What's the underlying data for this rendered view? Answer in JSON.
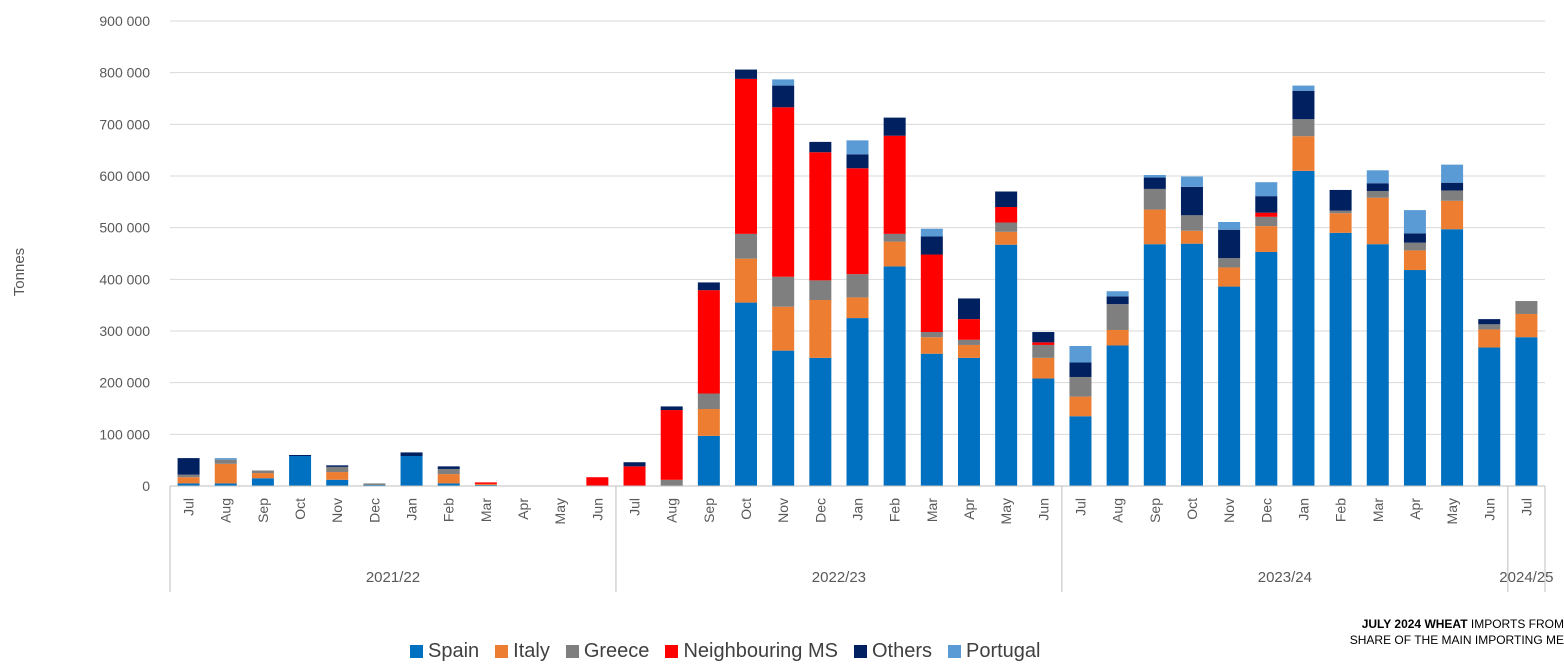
{
  "chart_data": {
    "type": "bar",
    "stacked": true,
    "ylabel": "Tonnes",
    "ylim": [
      0,
      900000
    ],
    "yticks": [
      0,
      100000,
      200000,
      300000,
      400000,
      500000,
      600000,
      700000,
      800000,
      900000
    ],
    "ytick_labels": [
      "0",
      "100 000",
      "200 000",
      "300 000",
      "400 000",
      "500 000",
      "600 000",
      "700 000",
      "800 000",
      "900 000"
    ],
    "grid": true,
    "legend_position": "bottom",
    "categories": [
      "Jul",
      "Aug",
      "Sep",
      "Oct",
      "Nov",
      "Dec",
      "Jan",
      "Feb",
      "Mar",
      "Apr",
      "May",
      "Jun",
      "Jul",
      "Aug",
      "Sep",
      "Oct",
      "Nov",
      "Dec",
      "Jan",
      "Feb",
      "Mar",
      "Apr",
      "May",
      "Jun",
      "Jul",
      "Aug",
      "Sep",
      "Oct",
      "Nov",
      "Dec",
      "Jan",
      "Feb",
      "Mar",
      "Apr",
      "May",
      "Jun",
      "Jul"
    ],
    "groups": [
      {
        "label": "2021/22",
        "count": 12
      },
      {
        "label": "2022/23",
        "count": 12
      },
      {
        "label": "2023/24",
        "count": 12
      },
      {
        "label": "2024/25",
        "count": 1
      }
    ],
    "series": [
      {
        "name": "Spain",
        "color": "#0070C0",
        "values": [
          5000,
          5000,
          15000,
          58000,
          12000,
          2000,
          58000,
          5000,
          2000,
          0,
          0,
          0,
          0,
          0,
          97000,
          355000,
          262000,
          248000,
          325000,
          425000,
          256000,
          248000,
          467000,
          208000,
          135000,
          272000,
          468000,
          469000,
          386000,
          453000,
          610000,
          490000,
          468000,
          418000,
          497000,
          268000,
          288000
        ]
      },
      {
        "name": "Italy",
        "color": "#ED7D31",
        "values": [
          12000,
          38000,
          10000,
          0,
          15000,
          0,
          0,
          18000,
          2000,
          0,
          0,
          0,
          0,
          0,
          52000,
          85000,
          85000,
          112000,
          40000,
          48000,
          32000,
          25000,
          25000,
          40000,
          38000,
          30000,
          67000,
          25000,
          37000,
          50000,
          67000,
          38000,
          90000,
          38000,
          55000,
          35000,
          45000
        ]
      },
      {
        "name": "Greece",
        "color": "#7F7F7F",
        "values": [
          5000,
          8000,
          5000,
          0,
          10000,
          3000,
          0,
          10000,
          0,
          0,
          0,
          0,
          0,
          12000,
          30000,
          48000,
          58000,
          38000,
          45000,
          15000,
          10000,
          10000,
          18000,
          25000,
          38000,
          50000,
          40000,
          30000,
          18000,
          18000,
          33000,
          5000,
          13000,
          15000,
          20000,
          10000,
          25000
        ]
      },
      {
        "name": "Neighbouring MS",
        "color": "#FF0000",
        "values": [
          0,
          0,
          0,
          0,
          0,
          0,
          0,
          0,
          3000,
          0,
          0,
          17000,
          38000,
          135000,
          200000,
          300000,
          328000,
          248000,
          205000,
          190000,
          150000,
          40000,
          30000,
          5000,
          0,
          0,
          0,
          0,
          0,
          8000,
          0,
          0,
          0,
          0,
          0,
          0,
          0
        ]
      },
      {
        "name": "Others",
        "color": "#002060",
        "values": [
          32000,
          0,
          0,
          2000,
          3000,
          0,
          7000,
          5000,
          0,
          0,
          0,
          0,
          8000,
          7000,
          15000,
          18000,
          42000,
          20000,
          27000,
          35000,
          35000,
          40000,
          30000,
          20000,
          28000,
          15000,
          22000,
          55000,
          55000,
          32000,
          55000,
          40000,
          15000,
          18000,
          15000,
          10000,
          0
        ]
      },
      {
        "name": "Portugal",
        "color": "#5B9BD5",
        "values": [
          0,
          3000,
          0,
          0,
          0,
          0,
          0,
          0,
          0,
          0,
          0,
          0,
          0,
          0,
          0,
          0,
          12000,
          0,
          27000,
          0,
          15000,
          0,
          0,
          0,
          32000,
          10000,
          5000,
          20000,
          15000,
          27000,
          10000,
          0,
          25000,
          45000,
          35000,
          0,
          0
        ]
      }
    ]
  },
  "caption": {
    "line1_bold": "JULY 2024 WHEAT",
    "line1_rest": " IMPORTS FROM",
    "line2": "SHARE OF THE MAIN IMPORTING ME"
  }
}
